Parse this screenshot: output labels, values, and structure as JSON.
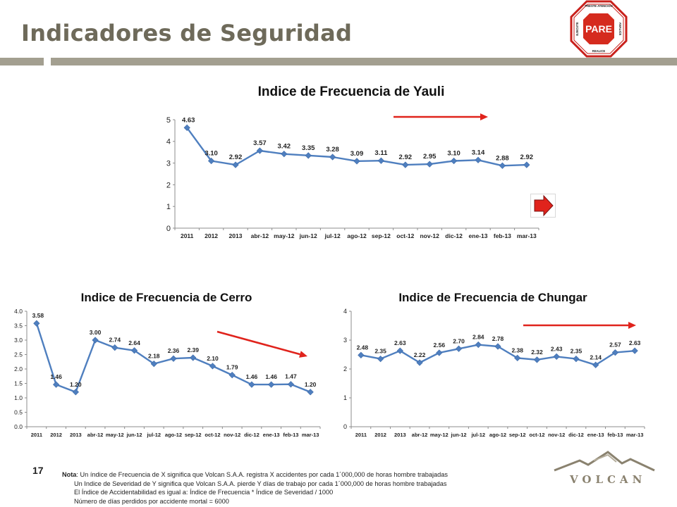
{
  "header": {
    "title": "Indicadores de Seguridad",
    "stop_sign": {
      "main": "PARE",
      "top": "PRESTE ATENCIÓN",
      "left": "EJECUTE",
      "right": "ANALICE",
      "bottom": "REALICE"
    }
  },
  "colors": {
    "line": "#4f7fbf",
    "marker": "#4f7fbf",
    "arrow": "#e0231c",
    "accent": "#a39f90",
    "title": "#6e6a5a"
  },
  "chart_data": [
    {
      "type": "line",
      "title": "Indice de Frecuencia de Yauli",
      "categories": [
        "2011",
        "2012",
        "2013",
        "abr-12",
        "may-12",
        "jun-12",
        "jul-12",
        "ago-12",
        "sep-12",
        "oct-12",
        "nov-12",
        "dic-12",
        "ene-13",
        "feb-13",
        "mar-13"
      ],
      "values": [
        4.63,
        3.1,
        2.92,
        3.57,
        3.42,
        3.35,
        3.28,
        3.09,
        3.11,
        2.92,
        2.95,
        3.1,
        3.14,
        2.88,
        2.92
      ],
      "value_labels": [
        "4.63",
        "3.10",
        "2.92",
        "3.57",
        "3.42",
        "3.35",
        "3.28",
        "3.09",
        "3.11",
        "2.92",
        "2.95",
        "3.10",
        "3.14",
        "2.88",
        "2.92"
      ],
      "ylim": [
        0,
        5
      ],
      "yticks": [
        "0",
        "1",
        "2",
        "3",
        "4",
        "5"
      ],
      "grid": false,
      "trend_arrow": "right"
    },
    {
      "type": "line",
      "title": "Indice de Frecuencia de Cerro",
      "categories": [
        "2011",
        "2012",
        "2013",
        "abr-12",
        "may-12",
        "jun-12",
        "jul-12",
        "ago-12",
        "sep-12",
        "oct-12",
        "nov-12",
        "dic-12",
        "ene-13",
        "feb-13",
        "mar-13"
      ],
      "values": [
        3.58,
        1.46,
        1.2,
        3.0,
        2.74,
        2.64,
        2.18,
        2.36,
        2.39,
        2.1,
        1.79,
        1.46,
        1.46,
        1.47,
        1.2
      ],
      "value_labels": [
        "3.58",
        "1.46",
        "1.20",
        "3.00",
        "2.74",
        "2.64",
        "2.18",
        "2.36",
        "2.39",
        "2.10",
        "1.79",
        "1.46",
        "1.46",
        "1.47",
        "1.20"
      ],
      "ylim": [
        0,
        4
      ],
      "yticks": [
        "0.0",
        "0.5",
        "1.0",
        "1.5",
        "2.0",
        "2.5",
        "3.0",
        "3.5",
        "4.0"
      ],
      "grid": false,
      "trend_arrow": "down-right"
    },
    {
      "type": "line",
      "title": "Indice de Frecuencia de Chungar",
      "categories": [
        "2011",
        "2012",
        "2013",
        "abr-12",
        "may-12",
        "jun-12",
        "jul-12",
        "ago-12",
        "sep-12",
        "oct-12",
        "nov-12",
        "dic-12",
        "ene-13",
        "feb-13",
        "mar-13"
      ],
      "values": [
        2.48,
        2.35,
        2.63,
        2.22,
        2.56,
        2.7,
        2.84,
        2.78,
        2.38,
        2.32,
        2.43,
        2.35,
        2.14,
        2.57,
        2.63
      ],
      "value_labels": [
        "2.48",
        "2.35",
        "2.63",
        "2.22",
        "2.56",
        "2.70",
        "2.84",
        "2.78",
        "2.38",
        "2.32",
        "2.43",
        "2.35",
        "2.14",
        "2.57",
        "2.63"
      ],
      "ylim": [
        0,
        4
      ],
      "yticks": [
        "0",
        "1",
        "2",
        "3",
        "4"
      ],
      "grid": false,
      "trend_arrow": "right"
    }
  ],
  "footer": {
    "page_number": "17",
    "note_label": "Nota",
    "note_lines": [
      ": Un índice de Frecuencia de X significa que Volcan S.A.A. registra X accidentes por cada 1´000,000 de horas hombre trabajadas",
      "Un Indice de Severidad de Y significa que Volcan S.A.A. pierde Y días de trabajo por cada 1´000,000 de horas hombre trabajadas",
      "El Índice de Accidentabilidad es igual a: Índice de Frecuencia * Índice de Severidad / 1000",
      "Número de días perdidos por accidente mortal = 6000"
    ],
    "logo_text": "VOLCAN"
  }
}
